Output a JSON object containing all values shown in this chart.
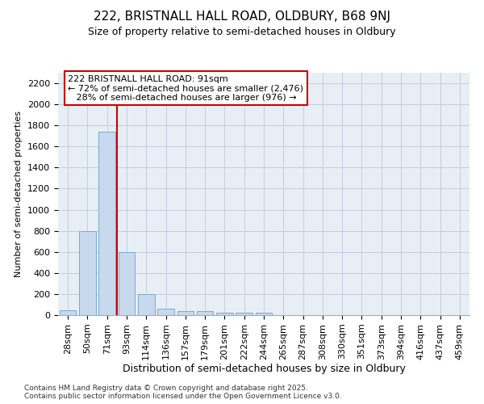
{
  "title1": "222, BRISTNALL HALL ROAD, OLDBURY, B68 9NJ",
  "title2": "Size of property relative to semi-detached houses in Oldbury",
  "xlabel": "Distribution of semi-detached houses by size in Oldbury",
  "ylabel": "Number of semi-detached properties",
  "categories": [
    "28sqm",
    "50sqm",
    "71sqm",
    "93sqm",
    "114sqm",
    "136sqm",
    "157sqm",
    "179sqm",
    "201sqm",
    "222sqm",
    "244sqm",
    "265sqm",
    "287sqm",
    "308sqm",
    "330sqm",
    "351sqm",
    "373sqm",
    "394sqm",
    "416sqm",
    "437sqm",
    "459sqm"
  ],
  "values": [
    45,
    800,
    1740,
    600,
    200,
    65,
    40,
    35,
    25,
    25,
    25,
    0,
    0,
    0,
    0,
    0,
    0,
    0,
    0,
    0,
    0
  ],
  "bar_color": "#c8d8ed",
  "bar_edge_color": "#7aaad0",
  "grid_color": "#c0c8d8",
  "bg_color": "#e8eef6",
  "vline_color": "#cc0000",
  "vline_index": 3,
  "annotation_line1": "222 BRISTNALL HALL ROAD: 91sqm",
  "annotation_line2": "← 72% of semi-detached houses are smaller (2,476)",
  "annotation_line3": "   28% of semi-detached houses are larger (976) →",
  "box_edge_color": "#cc0000",
  "footnote": "Contains HM Land Registry data © Crown copyright and database right 2025.\nContains public sector information licensed under the Open Government Licence v3.0.",
  "ylim": [
    0,
    2300
  ],
  "yticks": [
    0,
    200,
    400,
    600,
    800,
    1000,
    1200,
    1400,
    1600,
    1800,
    2000,
    2200
  ],
  "title1_fontsize": 11,
  "title2_fontsize": 9,
  "ylabel_fontsize": 8,
  "xlabel_fontsize": 9,
  "tick_fontsize": 8,
  "annot_fontsize": 8
}
